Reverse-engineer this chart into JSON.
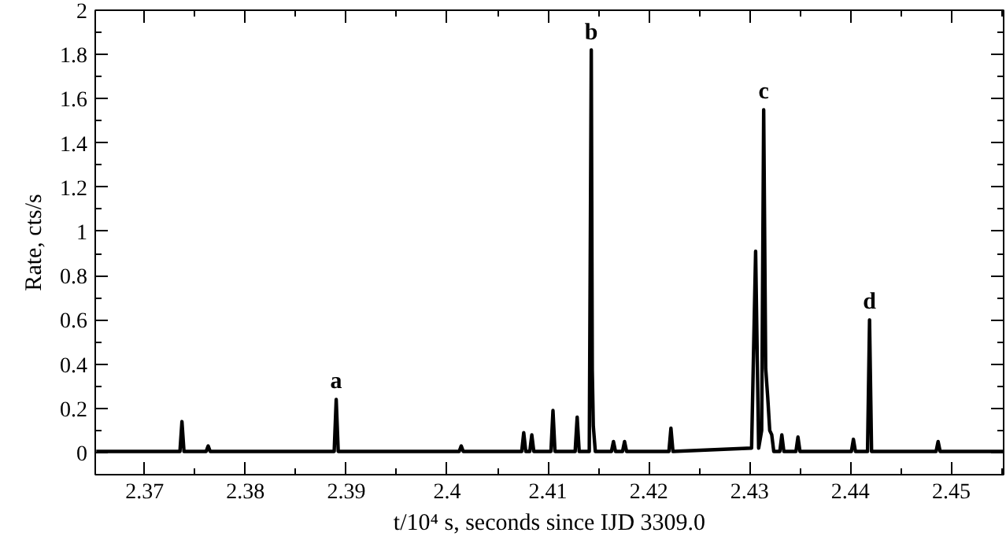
{
  "chart_data": {
    "type": "line",
    "xlabel": "t/10⁴ s, seconds since IJD 3309.0",
    "ylabel": "Rate, cts/s",
    "x": [
      2.3652,
      2.3735,
      2.3737,
      2.3739,
      2.3761,
      2.3763,
      2.3765,
      2.3888,
      2.389,
      2.3892,
      2.4012,
      2.4014,
      2.4016,
      2.4074,
      2.4076,
      2.4078,
      2.4082,
      2.4084,
      2.4086,
      2.4103,
      2.4105,
      2.4107,
      2.4127,
      2.4129,
      2.4131,
      2.4141,
      2.4143,
      2.4144,
      2.4145,
      2.4147,
      2.4163,
      2.4165,
      2.4167,
      2.4174,
      2.4176,
      2.4178,
      2.422,
      2.4222,
      2.4224,
      2.4302,
      2.4306,
      2.4309,
      2.4312,
      2.4314,
      2.4316,
      2.4318,
      2.432,
      2.4322,
      2.4324,
      2.433,
      2.4332,
      2.4334,
      2.4346,
      2.4348,
      2.435,
      2.4401,
      2.4403,
      2.4405,
      2.4417,
      2.4419,
      2.4421,
      2.4485,
      2.4487,
      2.4489,
      2.4552
    ],
    "values": [
      0.005,
      0.005,
      0.14,
      0.005,
      0.005,
      0.03,
      0.005,
      0.005,
      0.24,
      0.005,
      0.005,
      0.03,
      0.005,
      0.005,
      0.09,
      0.005,
      0.005,
      0.08,
      0.005,
      0.005,
      0.19,
      0.005,
      0.005,
      0.16,
      0.005,
      0.005,
      1.82,
      0.37,
      0.12,
      0.005,
      0.005,
      0.05,
      0.005,
      0.005,
      0.05,
      0.005,
      0.005,
      0.11,
      0.005,
      0.02,
      0.91,
      0.02,
      0.1,
      1.55,
      0.38,
      0.25,
      0.1,
      0.08,
      0.005,
      0.005,
      0.08,
      0.005,
      0.005,
      0.07,
      0.005,
      0.005,
      0.06,
      0.005,
      0.005,
      0.6,
      0.005,
      0.005,
      0.05,
      0.005,
      0.005
    ],
    "color": "#000000",
    "annotations": [
      {
        "text": "a",
        "x": 2.389,
        "y": 0.24
      },
      {
        "text": "b",
        "x": 2.4143,
        "y": 1.82
      },
      {
        "text": "c",
        "x": 2.4314,
        "y": 1.55
      },
      {
        "text": "d",
        "x": 2.4419,
        "y": 0.6
      }
    ],
    "xlim": [
      2.3651,
      2.4552
    ],
    "ylim": [
      -0.1,
      2
    ],
    "xticks": [
      2.37,
      2.38,
      2.39,
      2.4,
      2.41,
      2.42,
      2.43,
      2.44,
      2.45
    ],
    "yticks": [
      0,
      0.2,
      0.4,
      0.6,
      0.8,
      1,
      1.2,
      1.4,
      1.6,
      1.8,
      2
    ],
    "grid": false
  }
}
